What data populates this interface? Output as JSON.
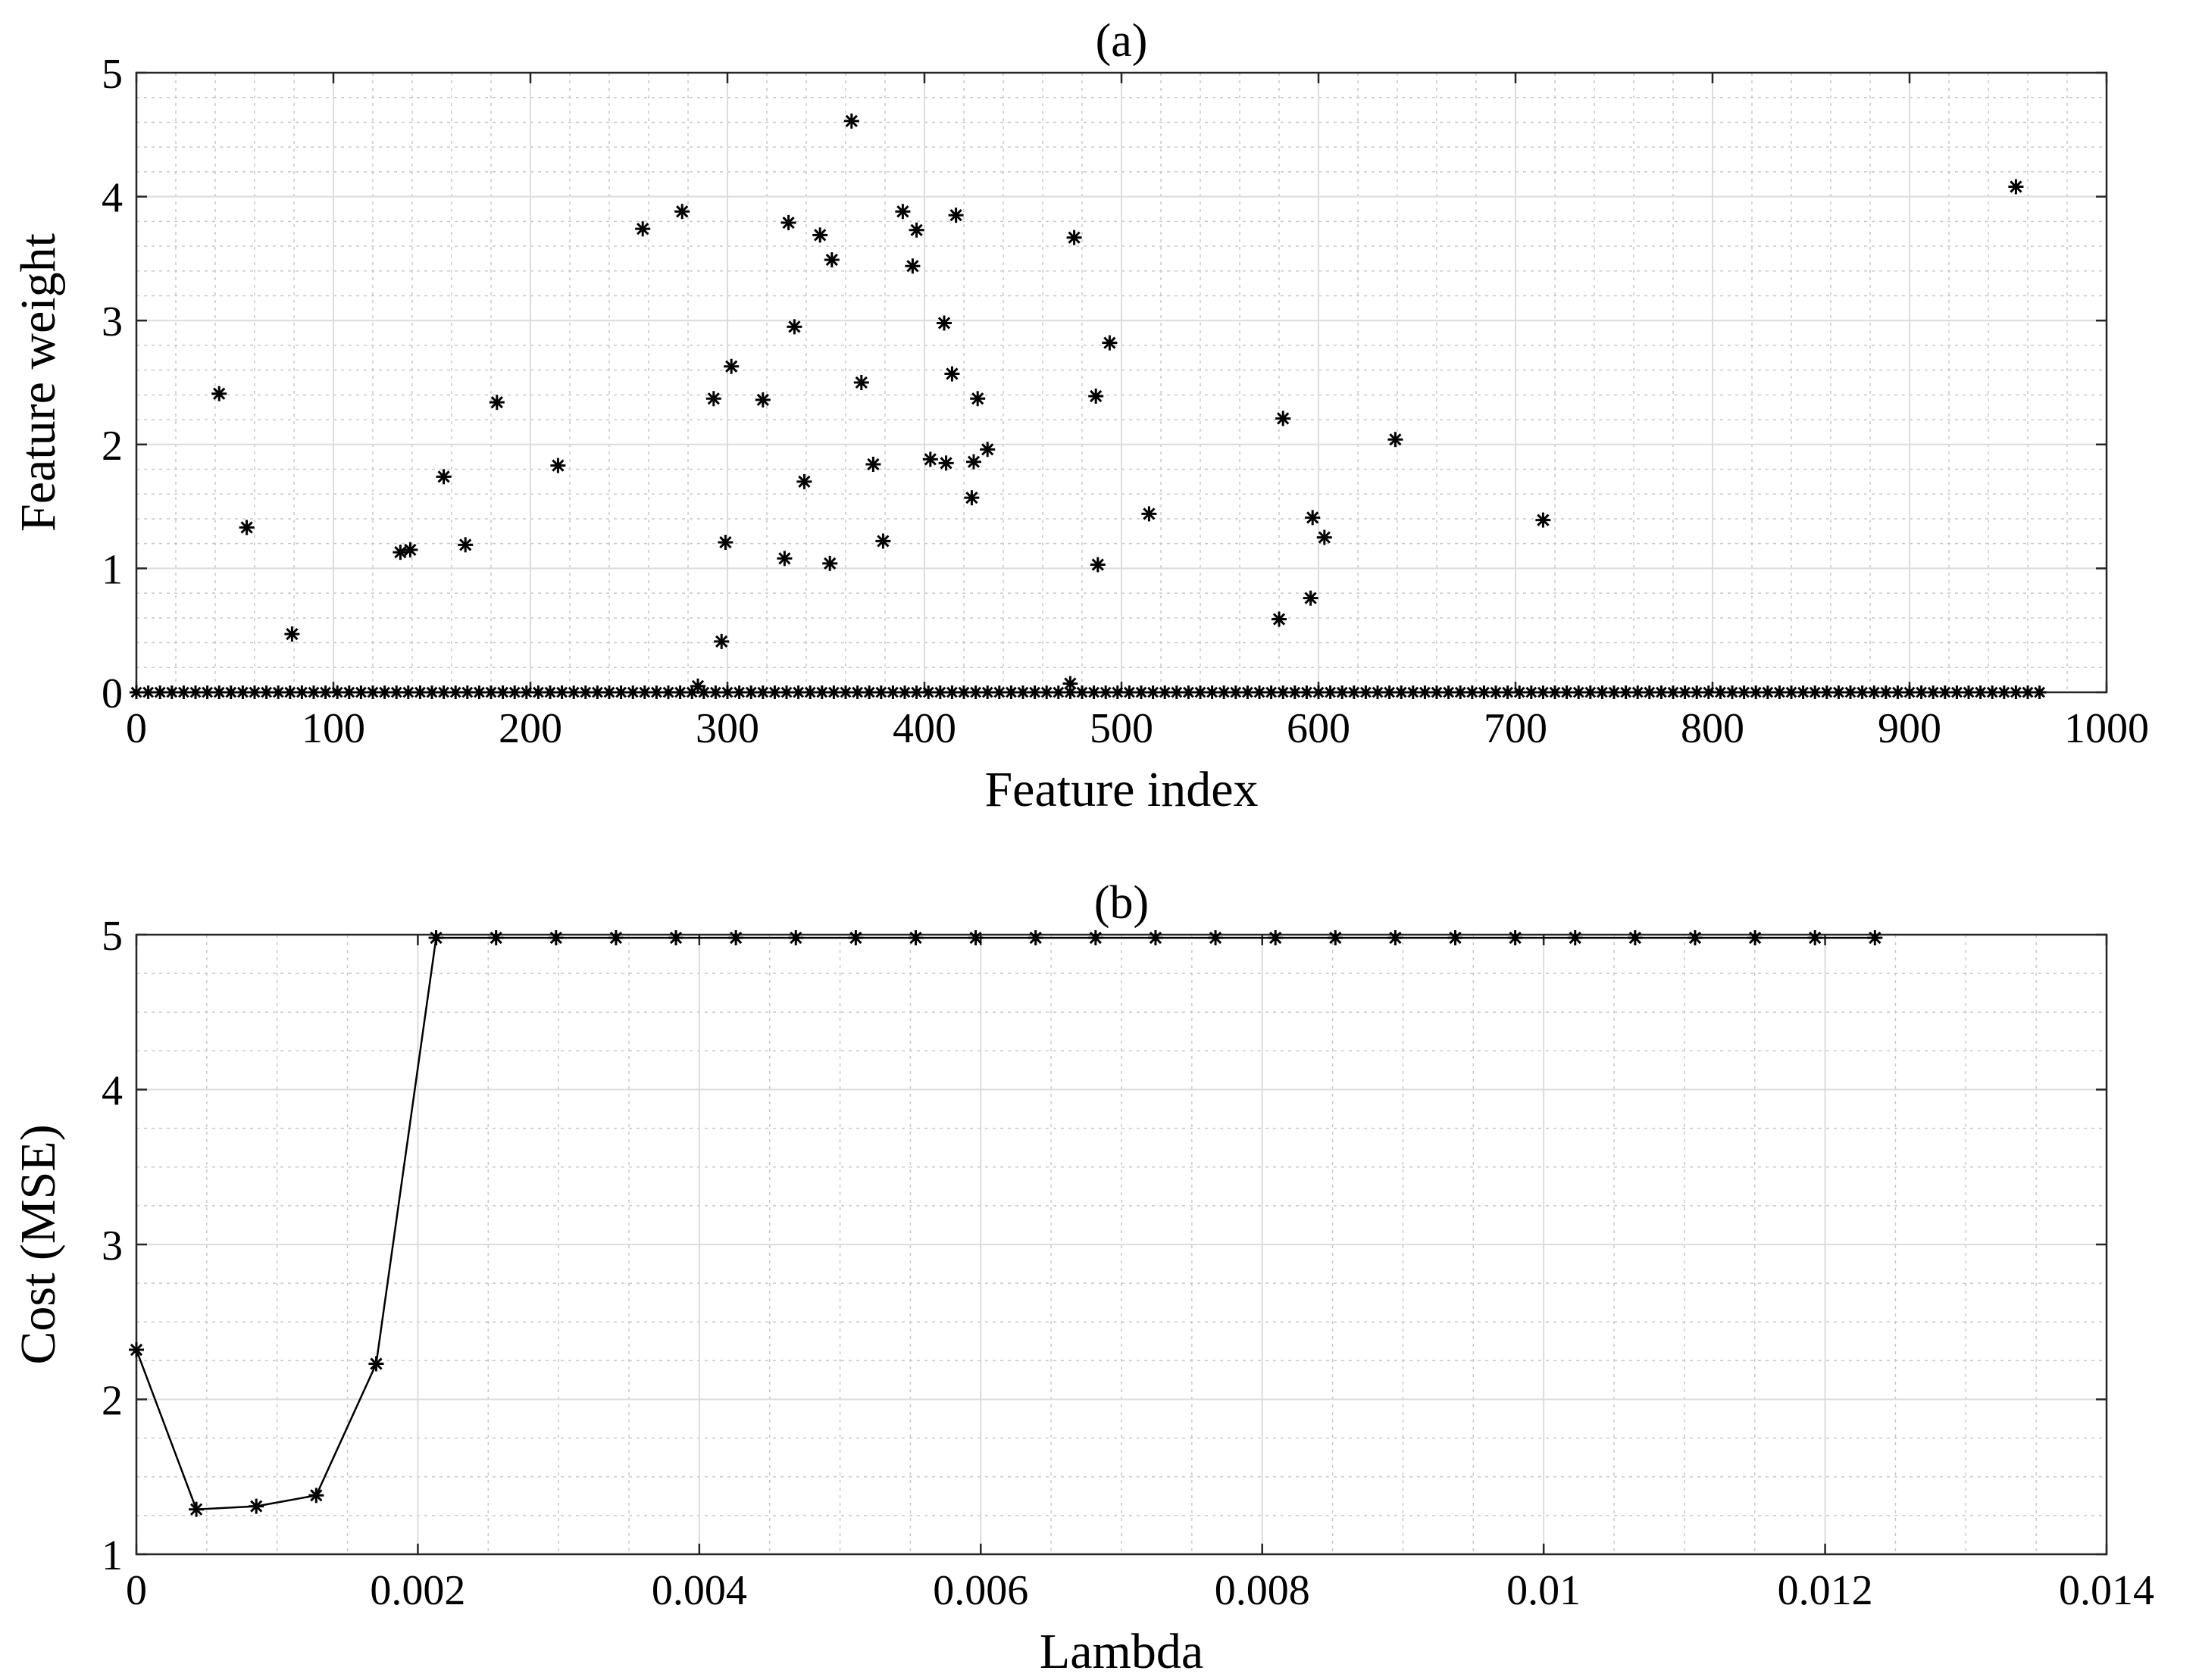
{
  "chart_data": [
    {
      "type": "scatter",
      "title": "(a)",
      "xlabel": "Feature index",
      "ylabel": "Feature weight",
      "xlim": [
        0,
        1000
      ],
      "ylim": [
        0,
        5
      ],
      "xticks": [
        "0",
        "100",
        "200",
        "300",
        "400",
        "500",
        "600",
        "700",
        "800",
        "900",
        "1000"
      ],
      "yticks": [
        "0",
        "1",
        "2",
        "3",
        "4",
        "5"
      ],
      "grid": true,
      "minor_grid": true,
      "marker": "asterisk",
      "color": "#000000",
      "zero_weight_feature_range": [
        0,
        970
      ],
      "points": [
        {
          "x": 42,
          "y": 2.41
        },
        {
          "x": 56,
          "y": 1.33
        },
        {
          "x": 79,
          "y": 0.47
        },
        {
          "x": 134,
          "y": 1.13
        },
        {
          "x": 139,
          "y": 1.15
        },
        {
          "x": 156,
          "y": 1.74
        },
        {
          "x": 167,
          "y": 1.19
        },
        {
          "x": 183,
          "y": 2.34
        },
        {
          "x": 214,
          "y": 1.83
        },
        {
          "x": 257,
          "y": 3.74
        },
        {
          "x": 277,
          "y": 3.88
        },
        {
          "x": 285,
          "y": 0.05
        },
        {
          "x": 293,
          "y": 2.37
        },
        {
          "x": 297,
          "y": 0.41
        },
        {
          "x": 299,
          "y": 1.21
        },
        {
          "x": 302,
          "y": 2.63
        },
        {
          "x": 318,
          "y": 2.36
        },
        {
          "x": 329,
          "y": 1.08
        },
        {
          "x": 331,
          "y": 3.79
        },
        {
          "x": 334,
          "y": 2.95
        },
        {
          "x": 339,
          "y": 1.7
        },
        {
          "x": 347,
          "y": 3.69
        },
        {
          "x": 352,
          "y": 1.04
        },
        {
          "x": 353,
          "y": 3.49
        },
        {
          "x": 363,
          "y": 4.61
        },
        {
          "x": 368,
          "y": 2.5
        },
        {
          "x": 374,
          "y": 1.84
        },
        {
          "x": 379,
          "y": 1.22
        },
        {
          "x": 389,
          "y": 3.88
        },
        {
          "x": 394,
          "y": 3.44
        },
        {
          "x": 396,
          "y": 3.73
        },
        {
          "x": 403,
          "y": 1.88
        },
        {
          "x": 410,
          "y": 2.98
        },
        {
          "x": 411,
          "y": 1.85
        },
        {
          "x": 414,
          "y": 2.57
        },
        {
          "x": 416,
          "y": 3.85
        },
        {
          "x": 424,
          "y": 1.57
        },
        {
          "x": 425,
          "y": 1.86
        },
        {
          "x": 427,
          "y": 2.37
        },
        {
          "x": 432,
          "y": 1.96
        },
        {
          "x": 474,
          "y": 0.07
        },
        {
          "x": 476,
          "y": 3.67
        },
        {
          "x": 487,
          "y": 2.39
        },
        {
          "x": 488,
          "y": 1.03
        },
        {
          "x": 494,
          "y": 2.82
        },
        {
          "x": 514,
          "y": 1.44
        },
        {
          "x": 580,
          "y": 0.59
        },
        {
          "x": 582,
          "y": 2.21
        },
        {
          "x": 596,
          "y": 0.76
        },
        {
          "x": 597,
          "y": 1.41
        },
        {
          "x": 603,
          "y": 1.25
        },
        {
          "x": 639,
          "y": 2.04
        },
        {
          "x": 714,
          "y": 1.39
        },
        {
          "x": 954,
          "y": 4.08
        }
      ]
    },
    {
      "type": "line",
      "title": "(b)",
      "xlabel": "Lambda",
      "ylabel": "Cost (MSE)",
      "xlim": [
        0,
        0.014
      ],
      "ylim": [
        1,
        5
      ],
      "xticks": [
        "0",
        "0.002",
        "0.004",
        "0.006",
        "0.008",
        "0.01",
        "0.012",
        "0.014"
      ],
      "yticks": [
        "1",
        "2",
        "3",
        "4",
        "5"
      ],
      "grid": true,
      "minor_grid": true,
      "marker": "asterisk",
      "color": "#000000",
      "x": [
        0,
        0.000426,
        0.000852,
        0.001278,
        0.001704,
        0.00213,
        0.002556,
        0.002982,
        0.003408,
        0.003834,
        0.00426,
        0.004686,
        0.005112,
        0.005538,
        0.005964,
        0.00639,
        0.006816,
        0.007242,
        0.007668,
        0.008094,
        0.00852,
        0.008946,
        0.009372,
        0.009798,
        0.010224,
        0.01065,
        0.011076,
        0.011502,
        0.011928,
        0.012354
      ],
      "y": [
        2.32,
        1.29,
        1.31,
        1.38,
        2.23,
        4.98,
        4.98,
        4.98,
        4.98,
        4.98,
        4.98,
        4.98,
        4.98,
        4.98,
        4.98,
        4.98,
        4.98,
        4.98,
        4.98,
        4.98,
        4.98,
        4.98,
        4.98,
        4.98,
        4.98,
        4.98,
        4.98,
        4.98,
        4.98,
        4.98
      ]
    }
  ]
}
